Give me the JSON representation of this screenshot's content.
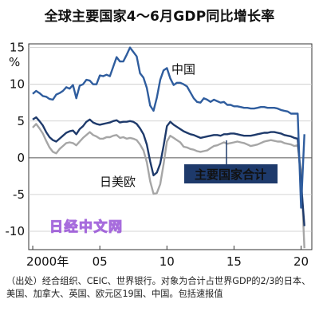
{
  "chart_data": {
    "type": "line",
    "title": "全球主要国家4～6月GDP同比增长率",
    "ylabel": "%",
    "ylim": [
      -12.5,
      15.5
    ],
    "y_ticks": [
      15,
      10,
      5,
      0,
      -5,
      -10
    ],
    "y_tick_labels": [
      "15",
      "10",
      "5",
      "0",
      "-5",
      "-10"
    ],
    "x_ticks": [
      2000,
      2005,
      2010,
      2015,
      2020
    ],
    "x_tick_labels": [
      "2000年",
      "05",
      "10",
      "15",
      "20"
    ],
    "grid": true,
    "series": [
      {
        "name": "中国",
        "color": "#2f5d9e",
        "points": [
          [
            2000.0,
            8.7
          ],
          [
            2000.25,
            9.1
          ],
          [
            2000.5,
            8.8
          ],
          [
            2000.75,
            8.4
          ],
          [
            2001.0,
            8.3
          ],
          [
            2001.25,
            8.0
          ],
          [
            2001.5,
            7.9
          ],
          [
            2001.75,
            8.6
          ],
          [
            2002.0,
            8.8
          ],
          [
            2002.25,
            9.1
          ],
          [
            2002.5,
            9.6
          ],
          [
            2002.75,
            9.4
          ],
          [
            2003.0,
            9.9
          ],
          [
            2003.25,
            8.1
          ],
          [
            2003.5,
            9.8
          ],
          [
            2003.75,
            10.0
          ],
          [
            2004.0,
            10.6
          ],
          [
            2004.25,
            10.5
          ],
          [
            2004.5,
            10.0
          ],
          [
            2004.75,
            10.0
          ],
          [
            2005.0,
            11.2
          ],
          [
            2005.25,
            11.1
          ],
          [
            2005.5,
            11.3
          ],
          [
            2005.75,
            11.1
          ],
          [
            2006.0,
            12.4
          ],
          [
            2006.25,
            13.7
          ],
          [
            2006.5,
            13.1
          ],
          [
            2006.75,
            13.1
          ],
          [
            2007.0,
            14.0
          ],
          [
            2007.25,
            15.0
          ],
          [
            2007.5,
            14.4
          ],
          [
            2007.75,
            13.8
          ],
          [
            2008.0,
            11.5
          ],
          [
            2008.25,
            10.9
          ],
          [
            2008.5,
            9.5
          ],
          [
            2008.75,
            7.1
          ],
          [
            2009.0,
            6.4
          ],
          [
            2009.25,
            8.2
          ],
          [
            2009.5,
            10.6
          ],
          [
            2009.75,
            11.9
          ],
          [
            2010.0,
            12.2
          ],
          [
            2010.25,
            10.8
          ],
          [
            2010.5,
            9.9
          ],
          [
            2010.75,
            10.2
          ],
          [
            2011.0,
            10.2
          ],
          [
            2011.25,
            10.0
          ],
          [
            2011.5,
            9.7
          ],
          [
            2011.75,
            8.9
          ],
          [
            2012.0,
            8.1
          ],
          [
            2012.25,
            7.6
          ],
          [
            2012.5,
            7.5
          ],
          [
            2012.75,
            8.1
          ],
          [
            2013.0,
            7.9
          ],
          [
            2013.25,
            7.6
          ],
          [
            2013.5,
            7.9
          ],
          [
            2013.75,
            7.7
          ],
          [
            2014.0,
            7.5
          ],
          [
            2014.25,
            7.6
          ],
          [
            2014.5,
            7.2
          ],
          [
            2014.75,
            7.2
          ],
          [
            2015.0,
            7.0
          ],
          [
            2015.25,
            7.0
          ],
          [
            2015.5,
            6.9
          ],
          [
            2015.75,
            6.8
          ],
          [
            2016.0,
            6.8
          ],
          [
            2016.25,
            6.7
          ],
          [
            2016.5,
            6.7
          ],
          [
            2016.75,
            6.8
          ],
          [
            2017.0,
            6.9
          ],
          [
            2017.25,
            6.9
          ],
          [
            2017.5,
            6.8
          ],
          [
            2017.75,
            6.8
          ],
          [
            2018.0,
            6.8
          ],
          [
            2018.25,
            6.7
          ],
          [
            2018.5,
            6.5
          ],
          [
            2018.75,
            6.4
          ],
          [
            2019.0,
            6.3
          ],
          [
            2019.25,
            6.0
          ],
          [
            2019.5,
            6.0
          ],
          [
            2019.75,
            6.0
          ],
          [
            2020.0,
            -6.8
          ],
          [
            2020.25,
            3.2
          ]
        ]
      },
      {
        "name": "主要国家合计",
        "color": "#1e3a6b",
        "points": [
          [
            2000.0,
            5.2
          ],
          [
            2000.25,
            5.5
          ],
          [
            2000.5,
            5.0
          ],
          [
            2000.75,
            4.4
          ],
          [
            2001.0,
            3.5
          ],
          [
            2001.25,
            2.8
          ],
          [
            2001.5,
            2.4
          ],
          [
            2001.75,
            2.2
          ],
          [
            2002.0,
            2.6
          ],
          [
            2002.25,
            3.0
          ],
          [
            2002.5,
            3.4
          ],
          [
            2002.75,
            3.6
          ],
          [
            2003.0,
            3.7
          ],
          [
            2003.25,
            3.2
          ],
          [
            2003.5,
            3.9
          ],
          [
            2003.75,
            4.3
          ],
          [
            2004.0,
            4.9
          ],
          [
            2004.25,
            5.2
          ],
          [
            2004.5,
            4.8
          ],
          [
            2004.75,
            4.6
          ],
          [
            2005.0,
            4.5
          ],
          [
            2005.25,
            4.6
          ],
          [
            2005.5,
            4.7
          ],
          [
            2005.75,
            4.8
          ],
          [
            2006.0,
            5.0
          ],
          [
            2006.25,
            5.1
          ],
          [
            2006.5,
            4.8
          ],
          [
            2006.75,
            4.9
          ],
          [
            2007.0,
            4.9
          ],
          [
            2007.25,
            5.0
          ],
          [
            2007.5,
            4.9
          ],
          [
            2007.75,
            4.6
          ],
          [
            2008.0,
            4.0
          ],
          [
            2008.25,
            3.2
          ],
          [
            2008.5,
            1.8
          ],
          [
            2008.75,
            -0.5
          ],
          [
            2009.0,
            -2.4
          ],
          [
            2009.25,
            -2.0
          ],
          [
            2009.5,
            -0.8
          ],
          [
            2009.75,
            1.6
          ],
          [
            2010.0,
            4.3
          ],
          [
            2010.25,
            4.9
          ],
          [
            2010.5,
            4.5
          ],
          [
            2010.75,
            4.2
          ],
          [
            2011.0,
            3.9
          ],
          [
            2011.25,
            3.6
          ],
          [
            2011.5,
            3.4
          ],
          [
            2011.75,
            3.2
          ],
          [
            2012.0,
            3.1
          ],
          [
            2012.25,
            2.9
          ],
          [
            2012.5,
            2.7
          ],
          [
            2012.75,
            2.8
          ],
          [
            2013.0,
            2.9
          ],
          [
            2013.25,
            3.0
          ],
          [
            2013.5,
            3.1
          ],
          [
            2013.75,
            3.1
          ],
          [
            2014.0,
            3.0
          ],
          [
            2014.25,
            3.2
          ],
          [
            2014.5,
            3.2
          ],
          [
            2014.75,
            3.3
          ],
          [
            2015.0,
            3.3
          ],
          [
            2015.25,
            3.2
          ],
          [
            2015.5,
            3.1
          ],
          [
            2015.75,
            3.0
          ],
          [
            2016.0,
            3.0
          ],
          [
            2016.25,
            3.0
          ],
          [
            2016.5,
            3.1
          ],
          [
            2016.75,
            3.2
          ],
          [
            2017.0,
            3.3
          ],
          [
            2017.25,
            3.4
          ],
          [
            2017.5,
            3.4
          ],
          [
            2017.75,
            3.5
          ],
          [
            2018.0,
            3.5
          ],
          [
            2018.25,
            3.4
          ],
          [
            2018.5,
            3.3
          ],
          [
            2018.75,
            3.1
          ],
          [
            2019.0,
            3.0
          ],
          [
            2019.25,
            2.9
          ],
          [
            2019.5,
            2.7
          ],
          [
            2019.75,
            2.6
          ],
          [
            2020.0,
            -3.4
          ],
          [
            2020.25,
            -9.3
          ]
        ]
      },
      {
        "name": "日美欧",
        "color": "#a6a6a6",
        "points": [
          [
            2000.0,
            4.1
          ],
          [
            2000.25,
            4.6
          ],
          [
            2000.5,
            4.0
          ],
          [
            2000.75,
            3.3
          ],
          [
            2001.0,
            2.3
          ],
          [
            2001.25,
            1.4
          ],
          [
            2001.5,
            0.8
          ],
          [
            2001.75,
            0.6
          ],
          [
            2002.0,
            1.2
          ],
          [
            2002.25,
            1.6
          ],
          [
            2002.5,
            2.0
          ],
          [
            2002.75,
            2.1
          ],
          [
            2003.0,
            2.0
          ],
          [
            2003.25,
            1.7
          ],
          [
            2003.5,
            2.2
          ],
          [
            2003.75,
            2.7
          ],
          [
            2004.0,
            3.1
          ],
          [
            2004.25,
            3.5
          ],
          [
            2004.5,
            3.1
          ],
          [
            2004.75,
            2.9
          ],
          [
            2005.0,
            2.6
          ],
          [
            2005.25,
            2.6
          ],
          [
            2005.5,
            2.8
          ],
          [
            2005.75,
            2.8
          ],
          [
            2006.0,
            3.0
          ],
          [
            2006.25,
            3.1
          ],
          [
            2006.5,
            2.7
          ],
          [
            2006.75,
            2.8
          ],
          [
            2007.0,
            2.6
          ],
          [
            2007.25,
            2.7
          ],
          [
            2007.5,
            2.6
          ],
          [
            2007.75,
            2.4
          ],
          [
            2008.0,
            1.8
          ],
          [
            2008.25,
            1.0
          ],
          [
            2008.5,
            -0.6
          ],
          [
            2008.75,
            -3.2
          ],
          [
            2009.0,
            -4.9
          ],
          [
            2009.25,
            -4.8
          ],
          [
            2009.5,
            -3.6
          ],
          [
            2009.75,
            -0.9
          ],
          [
            2010.0,
            2.2
          ],
          [
            2010.25,
            3.0
          ],
          [
            2010.5,
            2.7
          ],
          [
            2010.75,
            2.4
          ],
          [
            2011.0,
            2.1
          ],
          [
            2011.25,
            1.5
          ],
          [
            2011.5,
            1.4
          ],
          [
            2011.75,
            1.2
          ],
          [
            2012.0,
            1.1
          ],
          [
            2012.25,
            0.9
          ],
          [
            2012.5,
            0.8
          ],
          [
            2012.75,
            0.9
          ],
          [
            2013.0,
            1.0
          ],
          [
            2013.25,
            1.3
          ],
          [
            2013.5,
            1.6
          ],
          [
            2013.75,
            1.7
          ],
          [
            2014.0,
            1.9
          ],
          [
            2014.25,
            2.1
          ],
          [
            2014.5,
            1.9
          ],
          [
            2014.75,
            2.0
          ],
          [
            2015.0,
            2.1
          ],
          [
            2015.25,
            2.2
          ],
          [
            2015.5,
            2.1
          ],
          [
            2015.75,
            2.0
          ],
          [
            2016.0,
            1.8
          ],
          [
            2016.25,
            1.6
          ],
          [
            2016.5,
            1.7
          ],
          [
            2016.75,
            1.8
          ],
          [
            2017.0,
            2.0
          ],
          [
            2017.25,
            2.2
          ],
          [
            2017.5,
            2.3
          ],
          [
            2017.75,
            2.4
          ],
          [
            2018.0,
            2.3
          ],
          [
            2018.25,
            2.2
          ],
          [
            2018.5,
            2.2
          ],
          [
            2018.75,
            2.0
          ],
          [
            2019.0,
            1.9
          ],
          [
            2019.25,
            1.8
          ],
          [
            2019.5,
            1.6
          ],
          [
            2019.75,
            1.7
          ],
          [
            2020.0,
            -1.8
          ],
          [
            2020.25,
            -12.3
          ]
        ]
      }
    ],
    "legend_placement": "inline-labels",
    "annotations": [
      {
        "text": "中国",
        "near": "中国"
      },
      {
        "text": "日美欧",
        "near": "日美欧"
      },
      {
        "text": "主要国家合计",
        "near": "主要国家合计",
        "boxed": true,
        "box_color": "#1e3a6b",
        "text_color": "#ffffff"
      }
    ]
  },
  "watermark": "日经中文网",
  "source_note": "（出处）经合组织、CEIC、世界银行。对象为合计占世界GDP的2/3的日本、美国、加拿大、英国、欧元区19国、中国。包括速报值"
}
